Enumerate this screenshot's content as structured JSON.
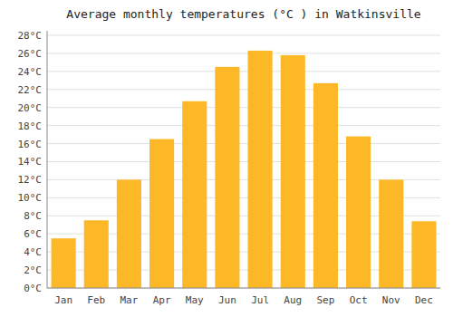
{
  "chart_data": {
    "type": "bar",
    "title": "Average monthly temperatures (°C ) in Watkinsville",
    "categories": [
      "Jan",
      "Feb",
      "Mar",
      "Apr",
      "May",
      "Jun",
      "Jul",
      "Aug",
      "Sep",
      "Oct",
      "Nov",
      "Dec"
    ],
    "values": [
      5.5,
      7.5,
      12.0,
      16.5,
      20.7,
      24.5,
      26.3,
      25.8,
      22.7,
      16.8,
      12.0,
      7.4
    ],
    "color": "#FDB827",
    "ylim": [
      0,
      28.5
    ],
    "yticks": [
      {
        "value": 0,
        "label": "0°C"
      },
      {
        "value": 2,
        "label": "2°C"
      },
      {
        "value": 4,
        "label": "4°C"
      },
      {
        "value": 6,
        "label": "6°C"
      },
      {
        "value": 8,
        "label": "8°C"
      },
      {
        "value": 10,
        "label": "10°C"
      },
      {
        "value": 12,
        "label": "12°C"
      },
      {
        "value": 14,
        "label": "14°C"
      },
      {
        "value": 16,
        "label": "16°C"
      },
      {
        "value": 18,
        "label": "18°C"
      },
      {
        "value": 20,
        "label": "20°C"
      },
      {
        "value": 22,
        "label": "22°C"
      },
      {
        "value": 24,
        "label": "24°C"
      },
      {
        "value": 26,
        "label": "26°C"
      },
      {
        "value": 28,
        "label": "28°C"
      }
    ],
    "grid": true
  }
}
